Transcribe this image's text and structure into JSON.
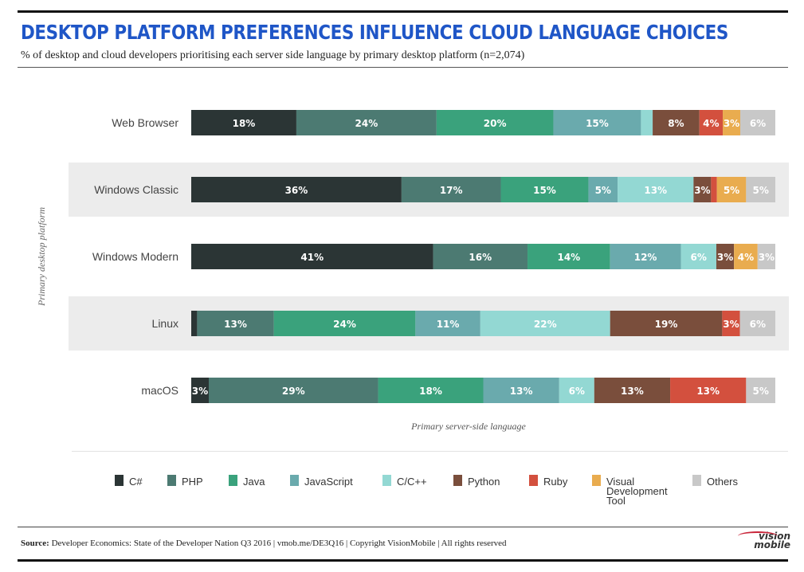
{
  "header": {
    "title": "DESKTOP PLATFORM PREFERENCES INFLUENCE CLOUD LANGUAGE CHOICES",
    "subtitle": "% of desktop and cloud developers prioritising each server side language by primary desktop platform (n=2,074)"
  },
  "chart_data": {
    "type": "bar",
    "orientation": "horizontal",
    "stacked": true,
    "normalized": true,
    "ylabel": "Primary desktop platform",
    "xlabel": "Primary server-side language",
    "legend_position": "bottom",
    "categories": [
      "Web Browser",
      "Windows Classic",
      "Windows Modern",
      "Linux",
      "macOS"
    ],
    "series": [
      {
        "name": "C#",
        "color": "#2b3535",
        "values": [
          18,
          36,
          41,
          1,
          3
        ],
        "labels": [
          "18%",
          "36%",
          "41%",
          "",
          "3%"
        ]
      },
      {
        "name": "PHP",
        "color": "#4c7a72",
        "values": [
          24,
          17,
          16,
          13,
          29
        ],
        "labels": [
          "24%",
          "17%",
          "16%",
          "13%",
          "29%"
        ]
      },
      {
        "name": "Java",
        "color": "#3aa27c",
        "values": [
          20,
          15,
          14,
          24,
          18
        ],
        "labels": [
          "20%",
          "15%",
          "14%",
          "24%",
          "18%"
        ]
      },
      {
        "name": "JavaScript",
        "color": "#6aaaad",
        "values": [
          15,
          5,
          12,
          11,
          13
        ],
        "labels": [
          "15%",
          "5%",
          "12%",
          "11%",
          "13%"
        ]
      },
      {
        "name": "C/C++",
        "color": "#93d8d3",
        "values": [
          2,
          13,
          6,
          22,
          6
        ],
        "labels": [
          "",
          "13%",
          "6%",
          "22%",
          "6%"
        ]
      },
      {
        "name": "Python",
        "color": "#7a4e3c",
        "values": [
          8,
          3,
          3,
          19,
          13
        ],
        "labels": [
          "8%",
          "3%",
          "3%",
          "19%",
          "13%"
        ]
      },
      {
        "name": "Ruby",
        "color": "#d3503e",
        "values": [
          4,
          1,
          0,
          3,
          13
        ],
        "labels": [
          "4%",
          "",
          "",
          "3%",
          "13%"
        ]
      },
      {
        "name": "Visual Development Tool",
        "color": "#e9ac4f",
        "values": [
          3,
          5,
          4,
          0,
          0
        ],
        "labels": [
          "3%",
          "5%",
          "4%",
          "",
          ""
        ]
      },
      {
        "name": "Others",
        "color": "#c8c8c8",
        "values": [
          6,
          5,
          3,
          6,
          5
        ],
        "labels": [
          "6%",
          "5%",
          "3%",
          "6%",
          "5%"
        ]
      }
    ]
  },
  "legend": {
    "items": [
      "C#",
      "PHP",
      "Java",
      "JavaScript",
      "C/C++",
      "Python",
      "Ruby",
      "Visual Development Tool",
      "Others"
    ],
    "vdt_lines": [
      "Visual",
      "Development",
      "Tool"
    ]
  },
  "footer": {
    "source_label": "Source:",
    "source_text": " Developer Economics: State of the Developer Nation Q3 2016   |   vmob.me/DE3Q16   |   Copyright VisionMobile   |   All rights reserved"
  },
  "logo": {
    "line1": "vision",
    "line2": "mobile"
  }
}
